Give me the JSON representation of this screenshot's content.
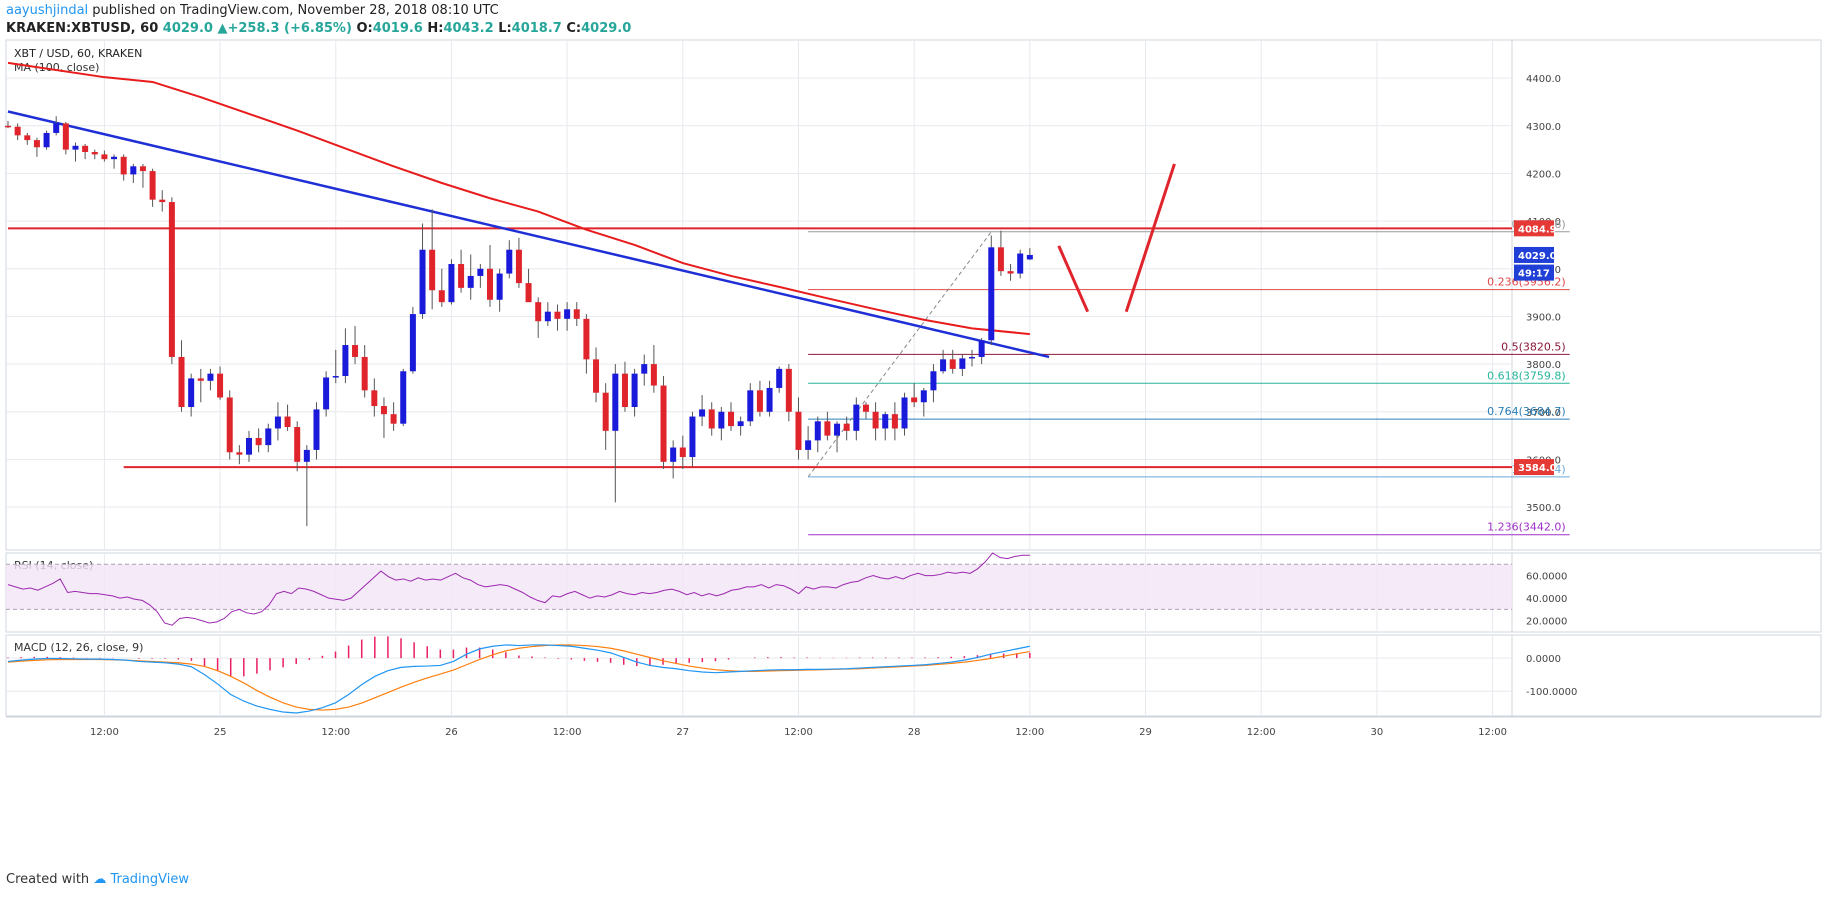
{
  "header": {
    "author": "aayushjindal",
    "published_text": " published on TradingView.com, November 28, 2018 08:10 UTC"
  },
  "ticker": {
    "symbol": "KRAKEN:XBTUSD, 60",
    "last": "4029.0",
    "change": "+258.3 (+6.85%)",
    "o_label": "O:",
    "o": "4019.6",
    "h_label": "H:",
    "h": "4043.2",
    "l_label": "L:",
    "l": "4018.7",
    "c_label": "C:",
    "c": "4029.0"
  },
  "footer": {
    "created_with": "Created with",
    "brand": "TradingView"
  },
  "colors": {
    "bull": "#1a1adb",
    "bear": "#e0242c",
    "ma": "#e81c1c",
    "trend": "#1f2fd6",
    "fib_dark": "#8b1a3a",
    "fib_red": "#e04848",
    "fib_teal": "#26b59a",
    "fib_blue": "#2a7fb8",
    "fib_light": "#6aa8d8",
    "fib_purple": "#a030c8",
    "rsi": "#9c27b0",
    "macd": "#2196f3",
    "signal": "#ff7f0e",
    "hist": "#e91e63"
  },
  "chart_data": [
    {
      "type": "candlestick",
      "title": "XBT / USD, 60, KRAKEN",
      "indicator_label": "MA (100, close)",
      "ylim": [
        3410,
        4480
      ],
      "y_ticks": [
        3500,
        3600,
        3700,
        3800,
        3900,
        4000,
        4100,
        4200,
        4300,
        4400
      ],
      "y_tick_labels": [
        "3500.0",
        "3600.0",
        "3700.0",
        "3800.0",
        "3900.0",
        "4000.0",
        "4100.0",
        "4200.0",
        "4300.0",
        "4400.0"
      ],
      "x_ticks": [
        "12:00",
        "25",
        "12:00",
        "26",
        "12:00",
        "27",
        "12:00",
        "28",
        "12:00",
        "29",
        "12:00",
        "30",
        "12:00"
      ],
      "x_tick_positions": [
        12,
        24,
        36,
        48,
        60,
        72,
        84,
        96,
        108,
        120,
        132,
        144,
        156
      ],
      "x_start_hour": 2,
      "candles": [
        [
          4300,
          4310,
          4295,
          4298
        ],
        [
          4298,
          4305,
          4270,
          4280
        ],
        [
          4280,
          4285,
          4260,
          4270
        ],
        [
          4270,
          4275,
          4235,
          4255
        ],
        [
          4255,
          4290,
          4250,
          4285
        ],
        [
          4285,
          4320,
          4280,
          4305
        ],
        [
          4305,
          4308,
          4240,
          4250
        ],
        [
          4250,
          4265,
          4225,
          4258
        ],
        [
          4258,
          4262,
          4230,
          4245
        ],
        [
          4245,
          4250,
          4230,
          4240
        ],
        [
          4240,
          4248,
          4225,
          4230
        ],
        [
          4230,
          4240,
          4210,
          4235
        ],
        [
          4235,
          4240,
          4185,
          4198
        ],
        [
          4198,
          4220,
          4180,
          4215
        ],
        [
          4215,
          4220,
          4170,
          4205
        ],
        [
          4205,
          4210,
          4130,
          4145
        ],
        [
          4145,
          4165,
          4120,
          4140
        ],
        [
          4140,
          4150,
          3800,
          3815
        ],
        [
          3815,
          3850,
          3700,
          3710
        ],
        [
          3710,
          3780,
          3690,
          3770
        ],
        [
          3770,
          3790,
          3720,
          3765
        ],
        [
          3765,
          3790,
          3745,
          3780
        ],
        [
          3780,
          3795,
          3725,
          3730
        ],
        [
          3730,
          3745,
          3600,
          3615
        ],
        [
          3615,
          3630,
          3590,
          3610
        ],
        [
          3610,
          3660,
          3595,
          3645
        ],
        [
          3645,
          3665,
          3615,
          3630
        ],
        [
          3630,
          3675,
          3615,
          3665
        ],
        [
          3665,
          3720,
          3640,
          3690
        ],
        [
          3690,
          3715,
          3660,
          3668
        ],
        [
          3668,
          3680,
          3575,
          3595
        ],
        [
          3595,
          3630,
          3460,
          3620
        ],
        [
          3620,
          3720,
          3600,
          3705
        ],
        [
          3705,
          3785,
          3690,
          3772
        ],
        [
          3772,
          3830,
          3760,
          3775
        ],
        [
          3775,
          3875,
          3760,
          3840
        ],
        [
          3840,
          3880,
          3800,
          3815
        ],
        [
          3815,
          3840,
          3730,
          3745
        ],
        [
          3745,
          3770,
          3690,
          3712
        ],
        [
          3712,
          3730,
          3645,
          3695
        ],
        [
          3695,
          3720,
          3660,
          3675
        ],
        [
          3675,
          3790,
          3670,
          3785
        ],
        [
          3785,
          3920,
          3780,
          3905
        ],
        [
          3905,
          4095,
          3895,
          4040
        ],
        [
          4040,
          4125,
          3915,
          3955
        ],
        [
          3955,
          4000,
          3920,
          3930
        ],
        [
          3930,
          4020,
          3925,
          4010
        ],
        [
          4010,
          4040,
          3950,
          3960
        ],
        [
          3960,
          4030,
          3935,
          3985
        ],
        [
          3985,
          4010,
          3960,
          4000
        ],
        [
          4000,
          4050,
          3920,
          3935
        ],
        [
          3935,
          4000,
          3910,
          3990
        ],
        [
          3990,
          4060,
          3980,
          4040
        ],
        [
          4040,
          4065,
          3960,
          3970
        ],
        [
          3970,
          4000,
          3930,
          3930
        ],
        [
          3930,
          3940,
          3855,
          3890
        ],
        [
          3890,
          3930,
          3880,
          3910
        ],
        [
          3910,
          3925,
          3870,
          3895
        ],
        [
          3895,
          3930,
          3870,
          3915
        ],
        [
          3915,
          3930,
          3880,
          3895
        ],
        [
          3895,
          3905,
          3780,
          3810
        ],
        [
          3810,
          3835,
          3720,
          3740
        ],
        [
          3740,
          3760,
          3620,
          3660
        ],
        [
          3660,
          3800,
          3510,
          3780
        ],
        [
          3780,
          3805,
          3700,
          3710
        ],
        [
          3710,
          3790,
          3690,
          3780
        ],
        [
          3780,
          3820,
          3755,
          3800
        ],
        [
          3800,
          3840,
          3740,
          3755
        ],
        [
          3755,
          3775,
          3580,
          3595
        ],
        [
          3595,
          3640,
          3560,
          3625
        ],
        [
          3625,
          3650,
          3580,
          3605
        ],
        [
          3605,
          3700,
          3585,
          3690
        ],
        [
          3690,
          3735,
          3670,
          3705
        ],
        [
          3705,
          3720,
          3650,
          3665
        ],
        [
          3665,
          3710,
          3640,
          3700
        ],
        [
          3700,
          3720,
          3660,
          3670
        ],
        [
          3670,
          3690,
          3650,
          3680
        ],
        [
          3680,
          3760,
          3670,
          3745
        ],
        [
          3745,
          3765,
          3690,
          3700
        ],
        [
          3700,
          3765,
          3690,
          3750
        ],
        [
          3750,
          3795,
          3740,
          3790
        ],
        [
          3790,
          3800,
          3680,
          3700
        ],
        [
          3700,
          3730,
          3600,
          3620
        ],
        [
          3620,
          3670,
          3600,
          3640
        ],
        [
          3640,
          3690,
          3615,
          3680
        ],
        [
          3680,
          3700,
          3640,
          3650
        ],
        [
          3650,
          3680,
          3615,
          3675
        ],
        [
          3675,
          3690,
          3640,
          3660
        ],
        [
          3660,
          3730,
          3640,
          3715
        ],
        [
          3715,
          3720,
          3685,
          3700
        ],
        [
          3700,
          3720,
          3640,
          3665
        ],
        [
          3665,
          3700,
          3640,
          3695
        ],
        [
          3695,
          3720,
          3640,
          3665
        ],
        [
          3665,
          3740,
          3650,
          3730
        ],
        [
          3730,
          3760,
          3710,
          3720
        ],
        [
          3720,
          3750,
          3690,
          3745
        ],
        [
          3745,
          3800,
          3720,
          3785
        ],
        [
          3785,
          3830,
          3780,
          3810
        ],
        [
          3810,
          3830,
          3780,
          3790
        ],
        [
          3790,
          3820,
          3775,
          3812
        ],
        [
          3812,
          3830,
          3795,
          3815
        ],
        [
          3815,
          3855,
          3800,
          3850
        ],
        [
          3850,
          4070,
          3840,
          4045
        ],
        [
          4045,
          4080,
          3985,
          3995
        ],
        [
          3995,
          4010,
          3975,
          3990
        ],
        [
          3990,
          4040,
          3980,
          4032
        ],
        [
          4019.6,
          4043.2,
          4018.7,
          4029.0
        ]
      ],
      "ma_label": "MA (100, close)",
      "ma_points": [
        [
          0,
          4432
        ],
        [
          10,
          4402
        ],
        [
          15,
          4392
        ],
        [
          20,
          4360
        ],
        [
          30,
          4290
        ],
        [
          40,
          4215
        ],
        [
          45,
          4180
        ],
        [
          50,
          4148
        ],
        [
          55,
          4120
        ],
        [
          60,
          4082
        ],
        [
          65,
          4050
        ],
        [
          70,
          4012
        ],
        [
          75,
          3985
        ],
        [
          80,
          3962
        ],
        [
          85,
          3938
        ],
        [
          90,
          3915
        ],
        [
          95,
          3893
        ],
        [
          100,
          3875
        ],
        [
          106,
          3863
        ]
      ],
      "trendline": [
        [
          0,
          4330
        ],
        [
          108,
          3815
        ]
      ],
      "horizontal_lines": [
        {
          "value": 4084.9,
          "label": "4084.9",
          "start": 0
        },
        {
          "value": 3584.0,
          "label": "3584.0",
          "start": 12
        }
      ],
      "fib_start_index": 83,
      "fib_end_index": 162,
      "fib_levels": [
        {
          "ratio": "0",
          "value": 4077.6,
          "text": "0(4077.6)",
          "color": "#999999"
        },
        {
          "ratio": "0.236",
          "value": 3956.2,
          "text": "0.236(3956.2)",
          "color": "#e04848"
        },
        {
          "ratio": "0.5",
          "value": 3820.5,
          "text": "0.5(3820.5)",
          "color": "#8b1a3a"
        },
        {
          "ratio": "0.618",
          "value": 3759.8,
          "text": "0.618(3759.8)",
          "color": "#26b59a"
        },
        {
          "ratio": "0.764",
          "value": 3684.7,
          "text": "0.764(3684.7)",
          "color": "#2a7fb8"
        },
        {
          "ratio": "1",
          "value": 3563.4,
          "text": "1(3563.4)",
          "color": "#6aa8d8"
        },
        {
          "ratio": "1.236",
          "value": 3442.0,
          "text": "1.236(3442.0)",
          "color": "#a030c8"
        }
      ],
      "fib_diagonal": [
        [
          83,
          3563.4
        ],
        [
          102,
          4077.6
        ]
      ],
      "projection_lines": [
        [
          [
            109,
            4048
          ],
          [
            112,
            3910
          ]
        ],
        [
          [
            116,
            3910
          ],
          [
            121,
            4220
          ]
        ]
      ],
      "price_labels": [
        {
          "value": 4084.9,
          "text": "4084.9",
          "color": "#e53935"
        },
        {
          "value": 4029.0,
          "text": "4029.0",
          "color": "#1f3fd6"
        },
        {
          "value": 3992.0,
          "text": "49:17",
          "color": "#1f3fd6"
        },
        {
          "value": 3584.0,
          "text": "3584.0",
          "color": "#e53935"
        }
      ]
    },
    {
      "type": "line",
      "title": "RSI (14, close)",
      "ylim": [
        10,
        80
      ],
      "y_ticks": [
        20,
        40,
        60
      ],
      "y_tick_labels": [
        "20.0000",
        "40.0000",
        "60.0000"
      ],
      "band": [
        30,
        70
      ],
      "values": [
        52,
        50,
        48,
        49,
        47,
        50,
        53,
        57,
        45,
        46,
        45,
        44,
        44,
        43,
        42,
        40,
        41,
        39,
        38,
        34,
        28,
        18,
        16,
        22,
        23,
        22,
        20,
        18,
        19,
        22,
        28,
        30,
        27,
        26,
        28,
        34,
        44,
        46,
        44,
        49,
        48,
        46,
        43,
        40,
        39,
        38,
        40,
        46,
        52,
        58,
        64,
        59,
        56,
        57,
        55,
        58,
        56,
        57,
        56,
        59,
        62,
        58,
        56,
        52,
        50,
        51,
        52,
        51,
        48,
        45,
        41,
        38,
        36,
        42,
        41,
        44,
        46,
        43,
        40,
        42,
        41,
        43,
        46,
        44,
        43,
        45,
        44,
        45,
        47,
        48,
        46,
        43,
        45,
        42,
        44,
        42,
        44,
        47,
        48,
        50,
        50,
        52,
        49,
        52,
        51,
        48,
        44,
        50,
        48,
        50,
        50,
        49,
        52,
        54,
        55,
        58,
        60,
        58,
        57,
        59,
        57,
        60,
        62,
        60,
        60,
        61,
        63,
        62,
        63,
        62,
        66,
        72,
        80,
        76,
        75,
        77,
        78,
        78
      ]
    },
    {
      "type": "line",
      "title": "MACD (12, 26, close, 9)",
      "ylim": [
        -175,
        70
      ],
      "y_ticks": [
        0,
        -100
      ],
      "y_tick_labels": [
        "0.0000",
        "-100.0000"
      ],
      "macd": [
        -10,
        -6,
        -3,
        -1,
        -1,
        -2,
        -3,
        -3,
        -4,
        -6,
        -10,
        -12,
        -14,
        -18,
        -26,
        -50,
        -78,
        -110,
        -130,
        -145,
        -155,
        -163,
        -166,
        -160,
        -150,
        -135,
        -110,
        -80,
        -55,
        -38,
        -28,
        -25,
        -24,
        -22,
        -10,
        12,
        28,
        36,
        40,
        38,
        40,
        40,
        38,
        36,
        30,
        24,
        16,
        2,
        -12,
        -22,
        -28,
        -32,
        -38,
        -42,
        -44,
        -42,
        -40,
        -38,
        -36,
        -35,
        -35,
        -34,
        -34,
        -33,
        -32,
        -30,
        -28,
        -26,
        -24,
        -22,
        -20,
        -16,
        -12,
        -6,
        2,
        12,
        20,
        28,
        36
      ],
      "signal": [
        -12,
        -9,
        -7,
        -5,
        -4,
        -4,
        -4,
        -4,
        -5,
        -6,
        -8,
        -10,
        -12,
        -14,
        -18,
        -25,
        -38,
        -55,
        -75,
        -98,
        -118,
        -135,
        -148,
        -155,
        -157,
        -155,
        -148,
        -136,
        -120,
        -104,
        -88,
        -73,
        -60,
        -48,
        -36,
        -20,
        -4,
        10,
        22,
        30,
        35,
        38,
        40,
        40,
        38,
        35,
        30,
        22,
        12,
        2,
        -8,
        -16,
        -24,
        -30,
        -35,
        -38,
        -40,
        -40,
        -39,
        -38,
        -37,
        -36,
        -35,
        -34,
        -33,
        -32,
        -30,
        -28,
        -26,
        -24,
        -22,
        -19,
        -16,
        -12,
        -7,
        -1,
        6,
        13,
        20
      ],
      "histogram": [
        2,
        3,
        4,
        4,
        3,
        2,
        1,
        1,
        1,
        0,
        -2,
        -2,
        -2,
        -4,
        -8,
        -25,
        -40,
        -55,
        -55,
        -47,
        -37,
        -28,
        -18,
        -5,
        7,
        20,
        38,
        56,
        65,
        66,
        60,
        48,
        36,
        26,
        26,
        32,
        32,
        26,
        18,
        8,
        5,
        2,
        -2,
        -4,
        -8,
        -11,
        -14,
        -20,
        -24,
        -24,
        -20,
        -16,
        -14,
        -12,
        -9,
        -4,
        0,
        2,
        3,
        3,
        2,
        2,
        1,
        1,
        1,
        2,
        2,
        2,
        2,
        2,
        2,
        3,
        4,
        6,
        9,
        13,
        14,
        15,
        16
      ]
    }
  ]
}
